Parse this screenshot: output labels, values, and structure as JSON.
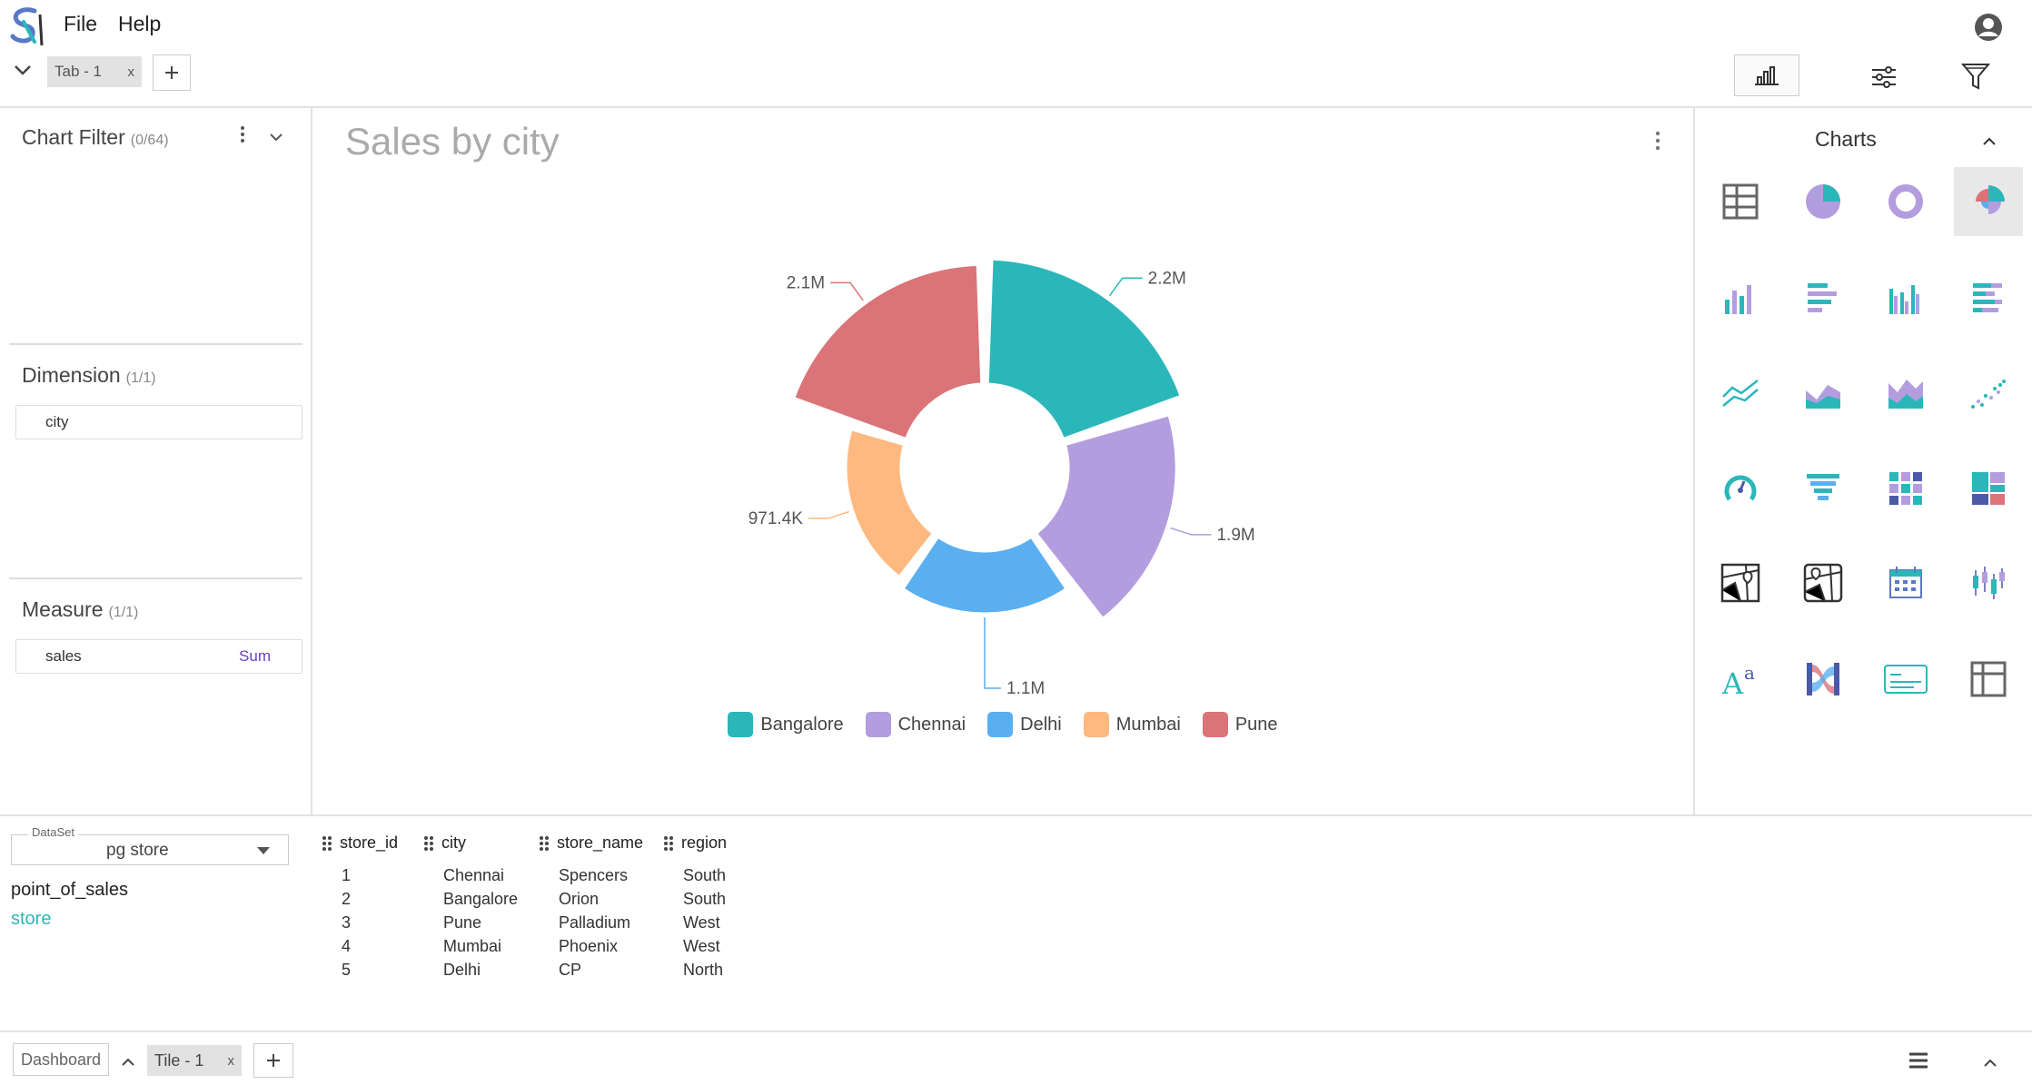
{
  "menu": {
    "file": "File",
    "help": "Help"
  },
  "tabs": [
    {
      "label": "Tab - 1",
      "close": "x"
    }
  ],
  "filter_panel": {
    "title": "Chart Filter",
    "count": "(0/64)",
    "dimension": {
      "title": "Dimension",
      "count": "(1/1)",
      "field": "city"
    },
    "measure": {
      "title": "Measure",
      "count": "(1/1)",
      "field": "sales",
      "agg": "Sum"
    }
  },
  "chart_tile": {
    "title": "Sales by city"
  },
  "chart_data": {
    "type": "pie",
    "variant": "rose-donut",
    "title": "Sales by city",
    "categories": [
      "Bangalore",
      "Chennai",
      "Delhi",
      "Mumbai",
      "Pune"
    ],
    "values": [
      2200000,
      1900000,
      1100000,
      971400,
      2100000
    ],
    "labels": [
      "2.2M",
      "1.9M",
      "1.1M",
      "971.4K",
      "2.1M"
    ],
    "colors": [
      "#2bb7b9",
      "#b39ddf",
      "#5aaff0",
      "#fdb97f",
      "#da7478"
    ],
    "legend_position": "bottom"
  },
  "charts_panel": {
    "title": "Charts"
  },
  "dataset": {
    "label": "DataSet",
    "selected": "pg store",
    "tables": [
      "point_of_sales",
      "store"
    ]
  },
  "table": {
    "columns": [
      "store_id",
      "city",
      "store_name",
      "region"
    ],
    "rows": [
      [
        "1",
        "Chennai",
        "Spencers",
        "South"
      ],
      [
        "2",
        "Bangalore",
        "Orion",
        "South"
      ],
      [
        "3",
        "Pune",
        "Palladium",
        "West"
      ],
      [
        "4",
        "Mumbai",
        "Phoenix",
        "West"
      ],
      [
        "5",
        "Delhi",
        "CP",
        "North"
      ]
    ]
  },
  "bottom": {
    "dashboard": "Dashboard",
    "tile": "Tile - 1",
    "tile_close": "x"
  }
}
